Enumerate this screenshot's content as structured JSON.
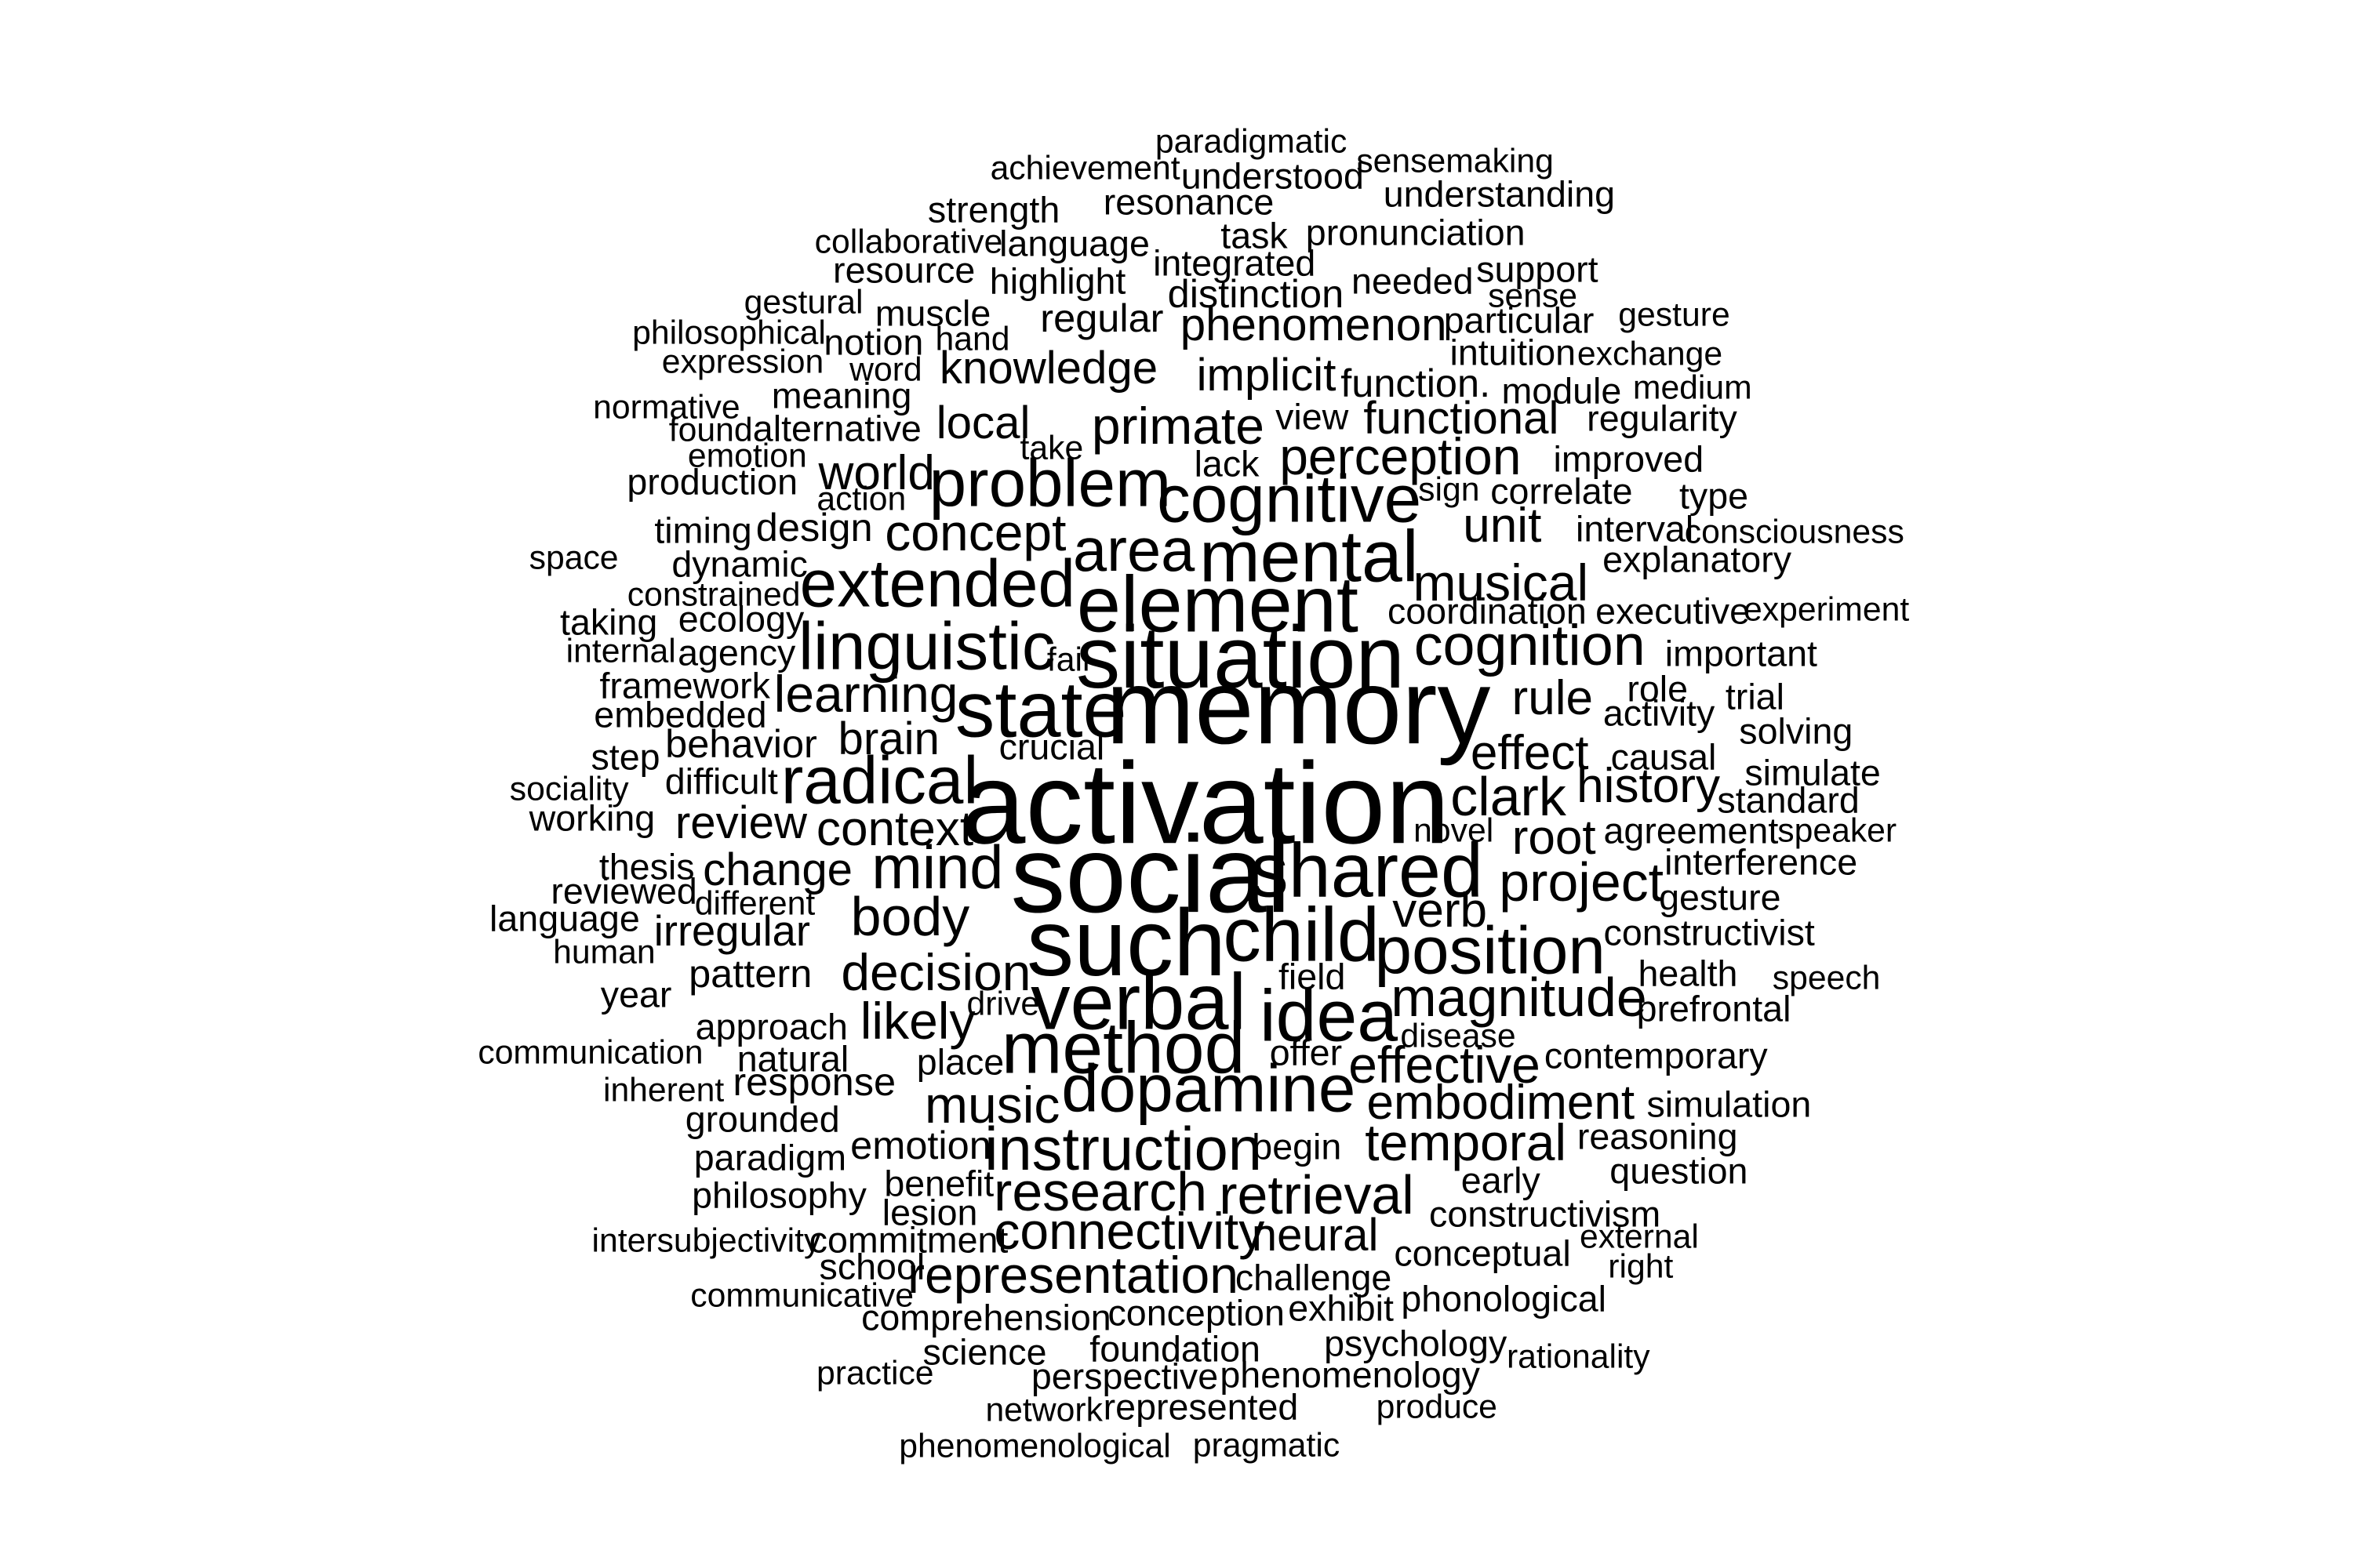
{
  "cloud": {
    "text_color": "#000000",
    "background_color": "#ffffff",
    "words": [
      {
        "text": "activation",
        "weight": 100
      },
      {
        "text": "social",
        "weight": 93
      },
      {
        "text": "memory",
        "weight": 91
      },
      {
        "text": "such",
        "weight": 78
      },
      {
        "text": "situation",
        "weight": 74
      },
      {
        "text": "verbal",
        "weight": 68
      },
      {
        "text": "state",
        "weight": 68
      },
      {
        "text": "element",
        "weight": 68
      },
      {
        "text": "shared",
        "weight": 66
      },
      {
        "text": "child",
        "weight": 66
      },
      {
        "text": "method",
        "weight": 64
      },
      {
        "text": "idea",
        "weight": 62
      },
      {
        "text": "mental",
        "weight": 62
      },
      {
        "text": "dopamine",
        "weight": 58
      },
      {
        "text": "radical",
        "weight": 58
      },
      {
        "text": "linguistic",
        "weight": 58
      },
      {
        "text": "cognitive",
        "weight": 58
      },
      {
        "text": "problem",
        "weight": 58
      },
      {
        "text": "position",
        "weight": 58
      },
      {
        "text": "extended",
        "weight": 56
      },
      {
        "text": "instruction",
        "weight": 54
      },
      {
        "text": "mind",
        "weight": 54
      },
      {
        "text": "area",
        "weight": 54
      },
      {
        "text": "cognition",
        "weight": 52
      },
      {
        "text": "magnitude",
        "weight": 50
      },
      {
        "text": "body",
        "weight": 50
      },
      {
        "text": "research",
        "weight": 50
      },
      {
        "text": "clark",
        "weight": 50
      },
      {
        "text": "project",
        "weight": 48
      },
      {
        "text": "retrieval",
        "weight": 48
      },
      {
        "text": "representation",
        "weight": 46
      },
      {
        "text": "effective",
        "weight": 46
      },
      {
        "text": "decision",
        "weight": 46
      },
      {
        "text": "temporal",
        "weight": 46
      },
      {
        "text": "perception",
        "weight": 46
      },
      {
        "text": "music",
        "weight": 46
      },
      {
        "text": "connectivity",
        "weight": 46
      },
      {
        "text": "likely",
        "weight": 46
      },
      {
        "text": "concept",
        "weight": 46
      },
      {
        "text": "learning",
        "weight": 46
      },
      {
        "text": "primate",
        "weight": 46
      },
      {
        "text": "musical",
        "weight": 46
      },
      {
        "text": "embodiment",
        "weight": 44
      },
      {
        "text": "context",
        "weight": 44
      },
      {
        "text": "effect",
        "weight": 44
      },
      {
        "text": "root",
        "weight": 44
      },
      {
        "text": "rule",
        "weight": 44
      },
      {
        "text": "verb",
        "weight": 44
      },
      {
        "text": "history",
        "weight": 44
      },
      {
        "text": "unit",
        "weight": 44
      },
      {
        "text": "world",
        "weight": 44
      },
      {
        "text": "knowledge",
        "weight": 42
      },
      {
        "text": "local",
        "weight": 42
      },
      {
        "text": "implicit",
        "weight": 42
      },
      {
        "text": "functional",
        "weight": 42
      },
      {
        "text": "neural",
        "weight": 42
      },
      {
        "text": "phenomenon",
        "weight": 42
      },
      {
        "text": "brain",
        "weight": 42
      },
      {
        "text": "change",
        "weight": 42
      },
      {
        "text": "review",
        "weight": 42
      },
      {
        "text": "irregular",
        "weight": 40
      },
      {
        "text": "regular",
        "weight": 38
      },
      {
        "text": "distinction",
        "weight": 38
      },
      {
        "text": "function.",
        "weight": 38
      },
      {
        "text": "emotion",
        "weight": 38
      },
      {
        "text": "design",
        "weight": 38
      },
      {
        "text": "behavior",
        "weight": 38
      },
      {
        "text": "pattern",
        "weight": 38
      },
      {
        "text": "response",
        "weight": 38
      },
      {
        "text": "exhibit",
        "weight": 36
      },
      {
        "text": "phonological",
        "weight": 36
      },
      {
        "text": "conceptual",
        "weight": 36
      },
      {
        "text": "commitment",
        "weight": 36
      },
      {
        "text": "comprehension",
        "weight": 36
      },
      {
        "text": "challenge",
        "weight": 36
      },
      {
        "text": "conception",
        "weight": 36
      },
      {
        "text": "psychology",
        "weight": 36
      },
      {
        "text": "phenomenology",
        "weight": 36
      },
      {
        "text": "perspective",
        "weight": 36
      },
      {
        "text": "foundation",
        "weight": 36
      },
      {
        "text": "represented",
        "weight": 36
      },
      {
        "text": "science",
        "weight": 36
      },
      {
        "text": "crucial",
        "weight": 36
      },
      {
        "text": "approach",
        "weight": 36
      },
      {
        "text": "constructivism",
        "weight": 36
      },
      {
        "text": "executive",
        "weight": 36
      },
      {
        "text": "coordination",
        "weight": 36
      },
      {
        "text": "framework",
        "weight": 36
      },
      {
        "text": "embedded",
        "weight": 36
      },
      {
        "text": "ecology",
        "weight": 36
      },
      {
        "text": "agency",
        "weight": 36
      },
      {
        "text": "dynamic",
        "weight": 36
      },
      {
        "text": "timing",
        "weight": 36
      },
      {
        "text": "production",
        "weight": 36
      },
      {
        "text": "alternative",
        "weight": 36
      },
      {
        "text": "meaning",
        "weight": 36
      },
      {
        "text": "notion",
        "weight": 36
      },
      {
        "text": "muscle",
        "weight": 36
      },
      {
        "text": "resource",
        "weight": 36
      },
      {
        "text": "highlight",
        "weight": 36
      },
      {
        "text": "language",
        "weight": 36
      },
      {
        "text": "strength",
        "weight": 36
      },
      {
        "text": "resonance",
        "weight": 36
      },
      {
        "text": "understood",
        "weight": 36
      },
      {
        "text": "understanding",
        "weight": 36
      },
      {
        "text": "pronunciation",
        "weight": 36
      },
      {
        "text": "integrated",
        "weight": 36
      },
      {
        "text": "task",
        "weight": 36
      },
      {
        "text": "needed",
        "weight": 36
      },
      {
        "text": "support",
        "weight": 36
      },
      {
        "text": "particular",
        "weight": 36
      },
      {
        "text": "intuition",
        "weight": 36
      },
      {
        "text": "module",
        "weight": 36
      },
      {
        "text": "regularity",
        "weight": 36
      },
      {
        "text": "improved",
        "weight": 36
      },
      {
        "text": "correlate",
        "weight": 36
      },
      {
        "text": "interval",
        "weight": 36
      },
      {
        "text": "explanatory",
        "weight": 36
      },
      {
        "text": "important",
        "weight": 36
      },
      {
        "text": "agreement",
        "weight": 36
      },
      {
        "text": "interference",
        "weight": 36
      },
      {
        "text": "constructivist",
        "weight": 36
      },
      {
        "text": "health",
        "weight": 36
      },
      {
        "text": "prefrontal",
        "weight": 36
      },
      {
        "text": "contemporary",
        "weight": 36
      },
      {
        "text": "simulation",
        "weight": 36
      },
      {
        "text": "reasoning",
        "weight": 36
      },
      {
        "text": "question",
        "weight": 36
      },
      {
        "text": "early",
        "weight": 36
      },
      {
        "text": "gesture",
        "weight": 36
      },
      {
        "text": "solving",
        "weight": 36
      },
      {
        "text": "simulate",
        "weight": 36
      },
      {
        "text": "standard",
        "weight": 36
      },
      {
        "text": "causal",
        "weight": 36
      },
      {
        "text": "role",
        "weight": 36
      },
      {
        "text": "trial",
        "weight": 36
      },
      {
        "text": "activity",
        "weight": 36
      },
      {
        "text": "type",
        "weight": 36
      },
      {
        "text": "lack",
        "weight": 36
      },
      {
        "text": "view",
        "weight": 36
      },
      {
        "text": "field",
        "weight": 36
      },
      {
        "text": "offer",
        "weight": 36
      },
      {
        "text": "begin",
        "weight": 36
      },
      {
        "text": "place",
        "weight": 36
      },
      {
        "text": "benefit",
        "weight": 36
      },
      {
        "text": "lesion",
        "weight": 36
      },
      {
        "text": "school",
        "weight": 36
      },
      {
        "text": "philosophy",
        "weight": 36
      },
      {
        "text": "paradigm",
        "weight": 36
      },
      {
        "text": "grounded",
        "weight": 36
      },
      {
        "text": "natural",
        "weight": 36
      },
      {
        "text": "year",
        "weight": 36
      },
      {
        "text": "language",
        "weight": 36
      },
      {
        "text": "reviewed",
        "weight": 36
      },
      {
        "text": "thesis",
        "weight": 36
      },
      {
        "text": "working",
        "weight": 36
      },
      {
        "text": "difficult",
        "weight": 36
      },
      {
        "text": "step",
        "weight": 36
      },
      {
        "text": "taking",
        "weight": 36
      },
      {
        "text": "emotion",
        "weight": 36
      },
      {
        "text": "collaborative",
        "weight": 32
      },
      {
        "text": "achievement",
        "weight": 32
      },
      {
        "text": "paradigmatic",
        "weight": 32
      },
      {
        "text": "sensemaking",
        "weight": 32
      },
      {
        "text": "gestural",
        "weight": 32
      },
      {
        "text": "philosophical",
        "weight": 32
      },
      {
        "text": "expression",
        "weight": 32
      },
      {
        "text": "normative",
        "weight": 32
      },
      {
        "text": "found",
        "weight": 32
      },
      {
        "text": "space",
        "weight": 32
      },
      {
        "text": "constrained",
        "weight": 32
      },
      {
        "text": "internal",
        "weight": 32
      },
      {
        "text": "sociality",
        "weight": 32
      },
      {
        "text": "different",
        "weight": 32
      },
      {
        "text": "human",
        "weight": 32
      },
      {
        "text": "communication",
        "weight": 32
      },
      {
        "text": "inherent",
        "weight": 32
      },
      {
        "text": "intersubjectivity",
        "weight": 32
      },
      {
        "text": "communicative",
        "weight": 32
      },
      {
        "text": "practice",
        "weight": 32
      },
      {
        "text": "network",
        "weight": 32
      },
      {
        "text": "phenomenological",
        "weight": 32
      },
      {
        "text": "pragmatic",
        "weight": 32
      },
      {
        "text": "produce",
        "weight": 32
      },
      {
        "text": "rationality",
        "weight": 32
      },
      {
        "text": "right",
        "weight": 32
      },
      {
        "text": "external",
        "weight": 32
      },
      {
        "text": "speech",
        "weight": 32
      },
      {
        "text": "speaker",
        "weight": 32
      },
      {
        "text": "novel",
        "weight": 32
      },
      {
        "text": "disease",
        "weight": 32
      },
      {
        "text": "drive",
        "weight": 32
      },
      {
        "text": "fail",
        "weight": 32
      },
      {
        "text": "experiment",
        "weight": 32
      },
      {
        "text": "consciousness",
        "weight": 32
      },
      {
        "text": "medium",
        "weight": 32
      },
      {
        "text": "exchange",
        "weight": 32
      },
      {
        "text": "gesture",
        "weight": 32
      },
      {
        "text": "sense",
        "weight": 32
      },
      {
        "text": "sign",
        "weight": 32
      },
      {
        "text": "take",
        "weight": 32
      },
      {
        "text": "action",
        "weight": 32
      },
      {
        "text": "hand",
        "weight": 32
      },
      {
        "text": "word",
        "weight": 32
      }
    ]
  }
}
